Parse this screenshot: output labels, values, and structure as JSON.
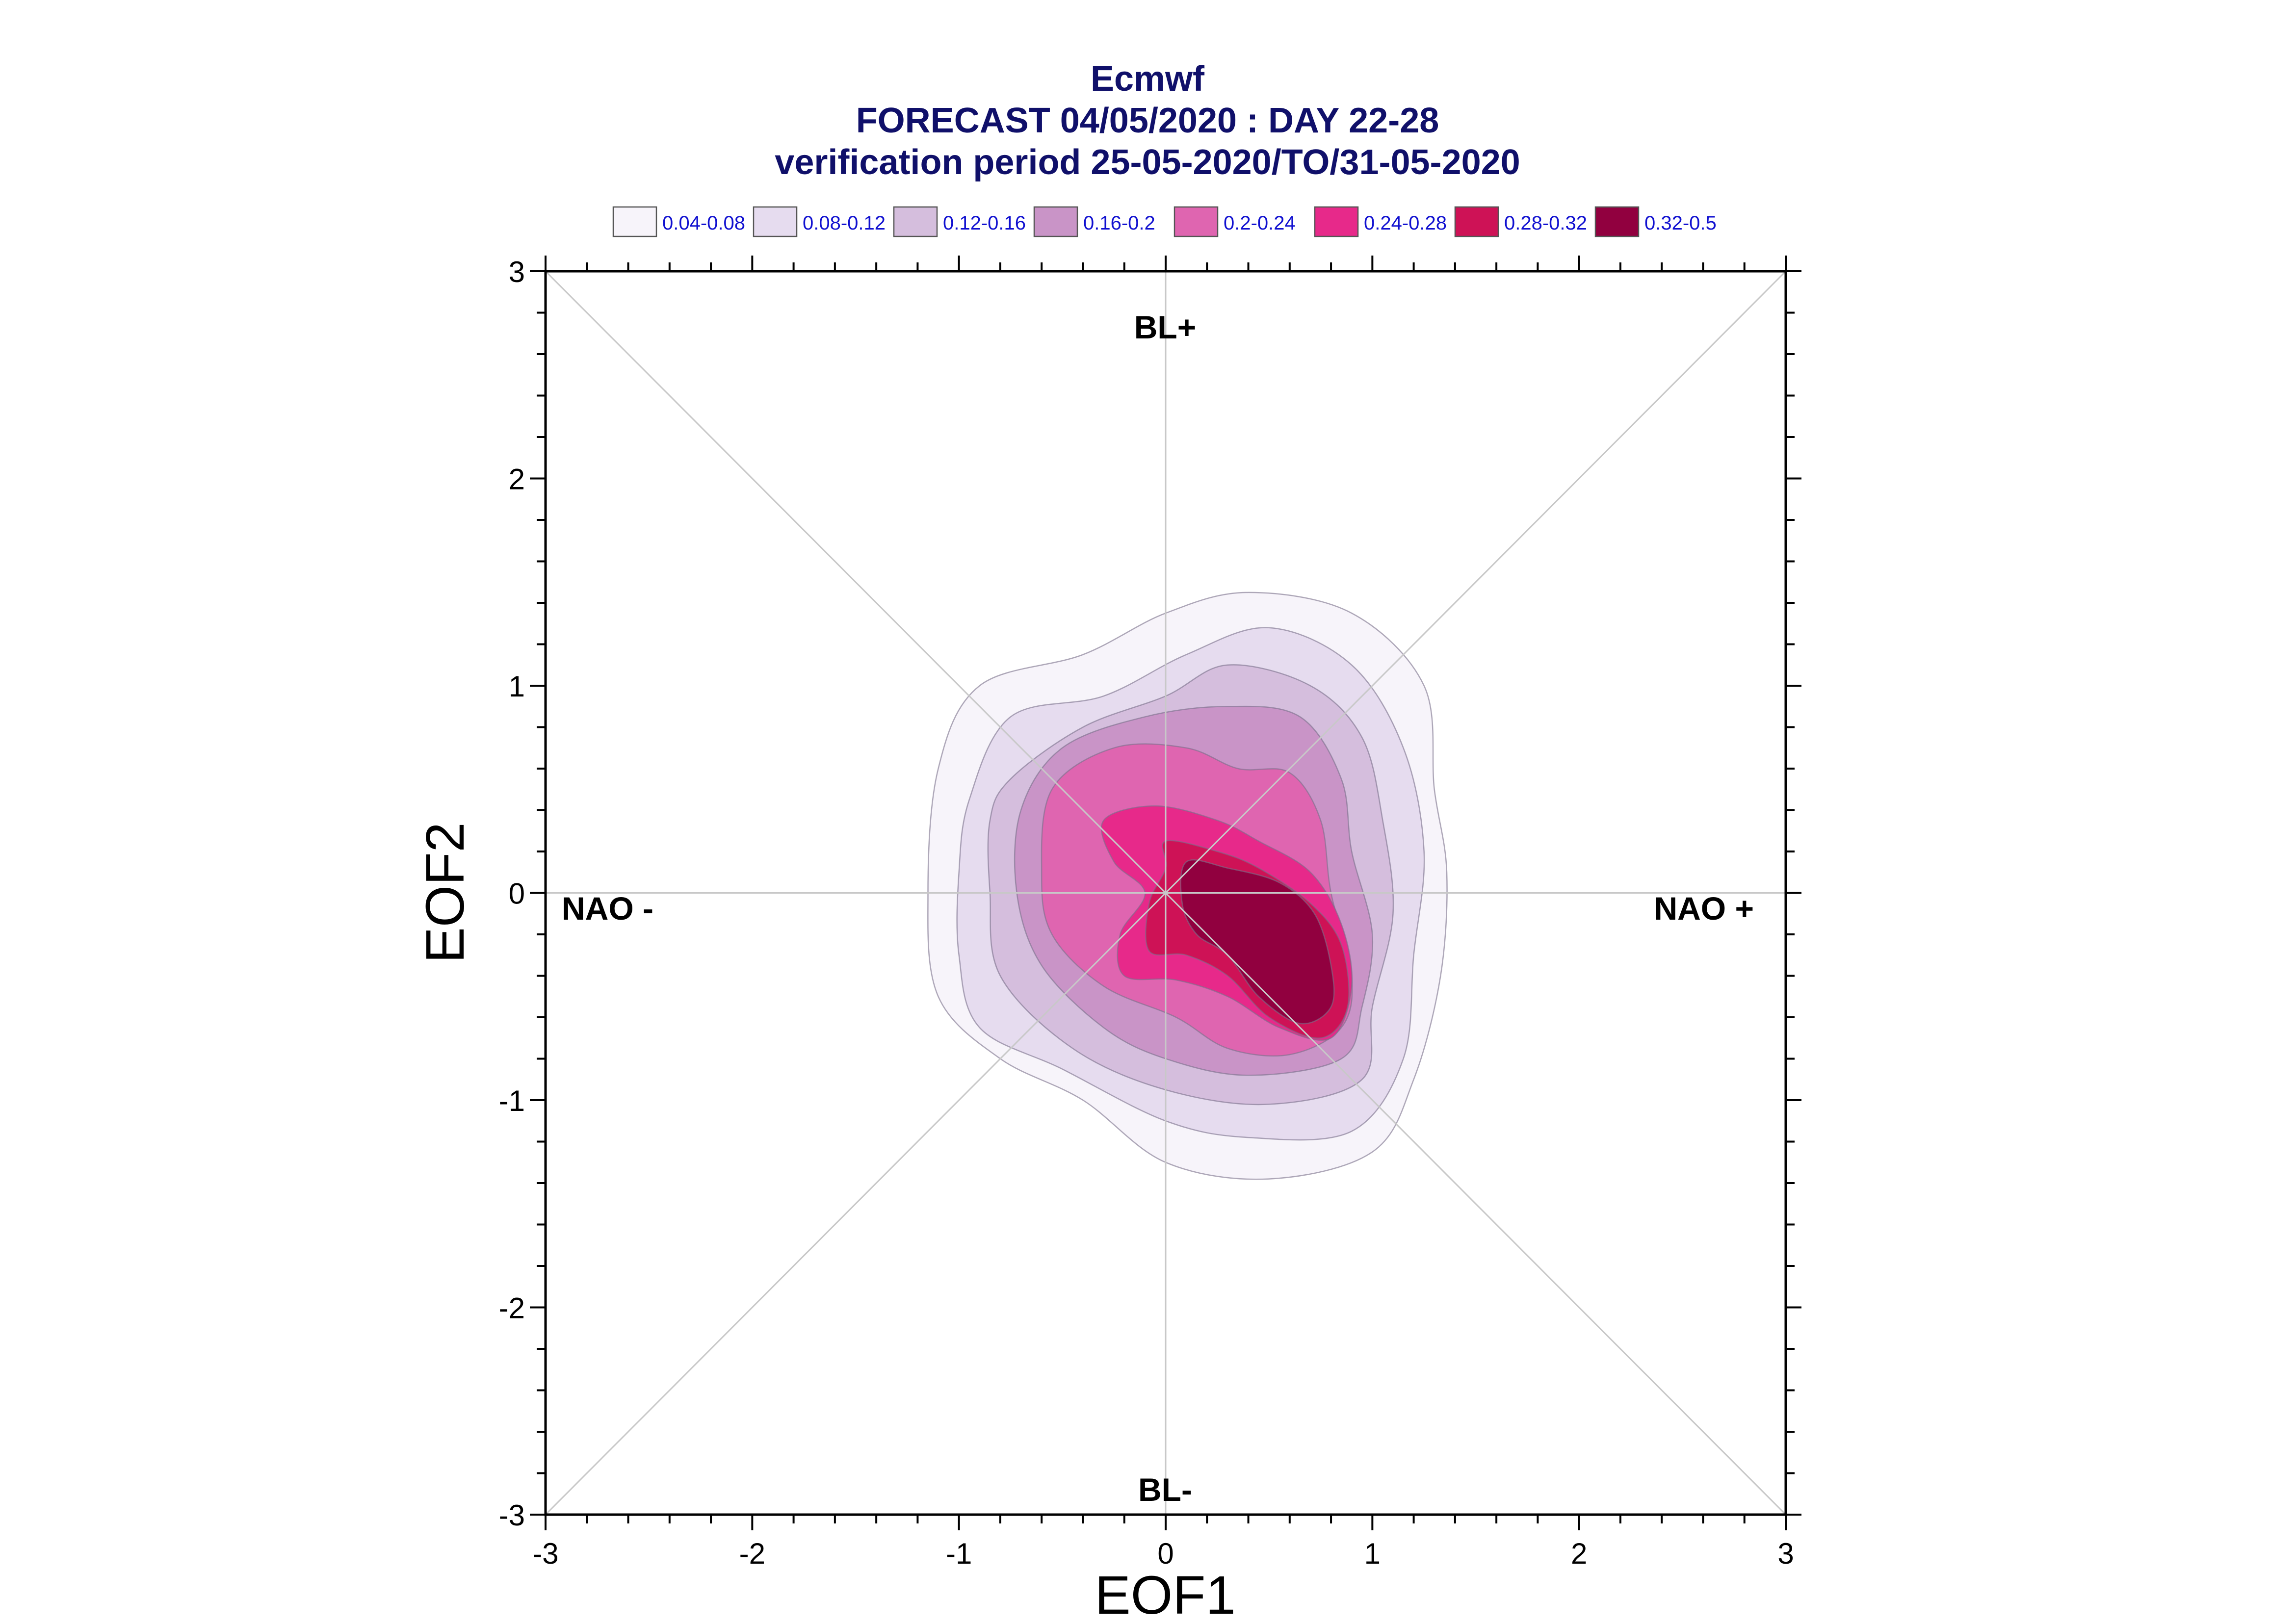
{
  "chart_data": {
    "type": "contour",
    "title_lines": [
      "Ecmwf",
      "FORECAST 04/05/2020 : DAY 22-28",
      "verification period 25-05-2020/TO/31-05-2020"
    ],
    "xlabel": "EOF1",
    "ylabel": "EOF2",
    "xlim": [
      -3,
      3
    ],
    "ylim": [
      -3,
      3
    ],
    "xticks": [
      "-3",
      "-2",
      "-1",
      "0",
      "1",
      "2",
      "3"
    ],
    "yticks": [
      "-3",
      "-2",
      "-1",
      "0",
      "1",
      "2",
      "3"
    ],
    "grid": "center cross and diagonals",
    "regime_labels": {
      "top": "BL+",
      "bottom": "BL-",
      "left": "NAO -",
      "right": "NAO +"
    },
    "legend": [
      {
        "label": "0.04-0.08",
        "color": "#f7f4fa"
      },
      {
        "label": "0.08-0.12",
        "color": "#e6dcef"
      },
      {
        "label": "0.12-0.16",
        "color": "#d5bedd"
      },
      {
        "label": "0.16-0.2",
        "color": "#c994c7"
      },
      {
        "label": "0.2-0.24",
        "color": "#df65b0"
      },
      {
        "label": "0.24-0.28",
        "color": "#e7298a"
      },
      {
        "label": "0.28-0.32",
        "color": "#ce1256"
      },
      {
        "label": "0.32-0.5",
        "color": "#91003f"
      }
    ],
    "legend_placement": "top",
    "contours": [
      {
        "level": "0.04-0.08",
        "points": [
          [
            -1.1,
            0.6
          ],
          [
            -0.9,
            1.0
          ],
          [
            -0.4,
            1.15
          ],
          [
            0.0,
            1.35
          ],
          [
            0.4,
            1.45
          ],
          [
            0.9,
            1.35
          ],
          [
            1.25,
            1.0
          ],
          [
            1.3,
            0.5
          ],
          [
            1.36,
            0.1
          ],
          [
            1.33,
            -0.4
          ],
          [
            1.2,
            -0.9
          ],
          [
            1.0,
            -1.25
          ],
          [
            0.5,
            -1.38
          ],
          [
            0.0,
            -1.3
          ],
          [
            -0.4,
            -1.0
          ],
          [
            -0.8,
            -0.8
          ],
          [
            -1.1,
            -0.5
          ],
          [
            -1.15,
            0.0
          ]
        ]
      },
      {
        "level": "0.08-0.12",
        "points": [
          [
            -0.95,
            0.45
          ],
          [
            -0.75,
            0.85
          ],
          [
            -0.3,
            0.95
          ],
          [
            0.1,
            1.15
          ],
          [
            0.5,
            1.28
          ],
          [
            0.9,
            1.1
          ],
          [
            1.15,
            0.7
          ],
          [
            1.25,
            0.2
          ],
          [
            1.2,
            -0.3
          ],
          [
            1.15,
            -0.8
          ],
          [
            0.9,
            -1.15
          ],
          [
            0.4,
            -1.18
          ],
          [
            0.0,
            -1.1
          ],
          [
            -0.5,
            -0.85
          ],
          [
            -0.9,
            -0.65
          ],
          [
            -1.0,
            -0.3
          ],
          [
            -1.0,
            0.1
          ]
        ]
      },
      {
        "level": "0.12-0.16",
        "points": [
          [
            -0.75,
            0.55
          ],
          [
            -0.4,
            0.8
          ],
          [
            0.0,
            0.95
          ],
          [
            0.3,
            1.1
          ],
          [
            0.7,
            1.0
          ],
          [
            0.95,
            0.75
          ],
          [
            1.05,
            0.35
          ],
          [
            1.1,
            -0.1
          ],
          [
            1.0,
            -0.55
          ],
          [
            0.95,
            -0.9
          ],
          [
            0.5,
            -1.02
          ],
          [
            0.0,
            -0.95
          ],
          [
            -0.45,
            -0.75
          ],
          [
            -0.8,
            -0.4
          ],
          [
            -0.85,
            0.0
          ],
          [
            -0.85,
            0.35
          ]
        ]
      },
      {
        "level": "0.16-0.2",
        "points": [
          [
            -0.7,
            0.4
          ],
          [
            -0.5,
            0.7
          ],
          [
            -0.1,
            0.85
          ],
          [
            0.3,
            0.9
          ],
          [
            0.65,
            0.85
          ],
          [
            0.85,
            0.55
          ],
          [
            0.9,
            0.2
          ],
          [
            1.0,
            -0.2
          ],
          [
            0.95,
            -0.55
          ],
          [
            0.85,
            -0.8
          ],
          [
            0.4,
            -0.88
          ],
          [
            0.0,
            -0.8
          ],
          [
            -0.3,
            -0.65
          ],
          [
            -0.6,
            -0.35
          ],
          [
            -0.72,
            0.0
          ]
        ]
      },
      {
        "level": "0.2-0.24",
        "points": [
          [
            -0.55,
            0.5
          ],
          [
            -0.25,
            0.7
          ],
          [
            0.1,
            0.7
          ],
          [
            0.35,
            0.6
          ],
          [
            0.6,
            0.58
          ],
          [
            0.75,
            0.35
          ],
          [
            0.8,
            0.0
          ],
          [
            0.9,
            -0.4
          ],
          [
            0.85,
            -0.65
          ],
          [
            0.6,
            -0.78
          ],
          [
            0.3,
            -0.75
          ],
          [
            0.05,
            -0.6
          ],
          [
            -0.3,
            -0.45
          ],
          [
            -0.55,
            -0.2
          ],
          [
            -0.6,
            0.1
          ]
        ]
      },
      {
        "level": "0.24-0.28",
        "points": [
          [
            -0.3,
            0.35
          ],
          [
            -0.05,
            0.42
          ],
          [
            0.25,
            0.35
          ],
          [
            0.45,
            0.25
          ],
          [
            0.7,
            0.1
          ],
          [
            0.85,
            -0.15
          ],
          [
            0.9,
            -0.45
          ],
          [
            0.8,
            -0.7
          ],
          [
            0.55,
            -0.65
          ],
          [
            0.3,
            -0.5
          ],
          [
            0.05,
            -0.42
          ],
          [
            -0.2,
            -0.4
          ],
          [
            -0.22,
            -0.2
          ],
          [
            -0.1,
            0.0
          ],
          [
            -0.25,
            0.15
          ]
        ]
      },
      {
        "level": "0.28-0.32",
        "points": [
          [
            0.0,
            0.25
          ],
          [
            0.25,
            0.2
          ],
          [
            0.45,
            0.12
          ],
          [
            0.7,
            -0.05
          ],
          [
            0.85,
            -0.25
          ],
          [
            0.88,
            -0.55
          ],
          [
            0.75,
            -0.7
          ],
          [
            0.5,
            -0.6
          ],
          [
            0.3,
            -0.4
          ],
          [
            0.1,
            -0.3
          ],
          [
            -0.08,
            -0.28
          ],
          [
            -0.08,
            -0.05
          ],
          [
            0.0,
            0.12
          ]
        ]
      },
      {
        "level": "0.32-0.5",
        "points": [
          [
            0.1,
            0.15
          ],
          [
            0.3,
            0.12
          ],
          [
            0.55,
            0.05
          ],
          [
            0.72,
            -0.1
          ],
          [
            0.8,
            -0.35
          ],
          [
            0.8,
            -0.55
          ],
          [
            0.65,
            -0.63
          ],
          [
            0.45,
            -0.5
          ],
          [
            0.3,
            -0.3
          ],
          [
            0.15,
            -0.2
          ],
          [
            0.08,
            -0.05
          ]
        ]
      }
    ]
  }
}
